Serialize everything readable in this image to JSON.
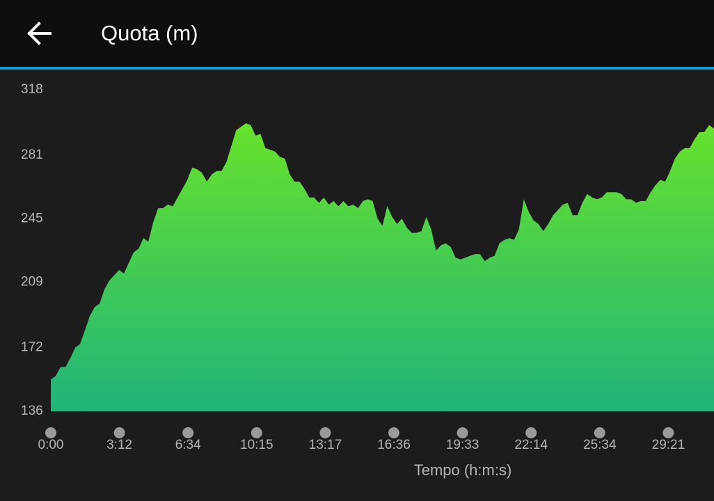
{
  "header": {
    "title": "Quota (m)"
  },
  "chart_data": {
    "type": "area",
    "xlabel": "Tempo (h:m:s)",
    "xtick_labels": [
      "0:00",
      "3:12",
      "6:34",
      "10:15",
      "13:17",
      "16:36",
      "19:33",
      "22:14",
      "25:34",
      "29:21"
    ],
    "ylim": [
      136,
      318
    ],
    "yticks": [
      136,
      172,
      209,
      245,
      281,
      318
    ],
    "color_top": "#68e22c",
    "color_bottom": "#1fb47a",
    "values": [
      154,
      156,
      161,
      161,
      166,
      172,
      174,
      182,
      190,
      195,
      197,
      205,
      210,
      213,
      216,
      214,
      220,
      226,
      228,
      234,
      232,
      243,
      251,
      251,
      253,
      252,
      257,
      262,
      267,
      274,
      273,
      271,
      266,
      270,
      272,
      272,
      277,
      286,
      295,
      297,
      299,
      298,
      292,
      293,
      285,
      284,
      283,
      280,
      279,
      270,
      266,
      266,
      262,
      257,
      257,
      254,
      257,
      253,
      255,
      252,
      255,
      252,
      253,
      251,
      255,
      256,
      255,
      245,
      241,
      252,
      246,
      242,
      245,
      240,
      237,
      237,
      238,
      246,
      239,
      227,
      230,
      231,
      229,
      223,
      222,
      223,
      224,
      225,
      225,
      221,
      223,
      224,
      231,
      233,
      234,
      233,
      239,
      256,
      249,
      244,
      242,
      238,
      242,
      247,
      250,
      253,
      254,
      247,
      247,
      254,
      259,
      257,
      256,
      257,
      260,
      260,
      260,
      259,
      256,
      256,
      254,
      255,
      255,
      260,
      264,
      267,
      266,
      272,
      279,
      283,
      285,
      285,
      290,
      294,
      294,
      298,
      296
    ]
  }
}
